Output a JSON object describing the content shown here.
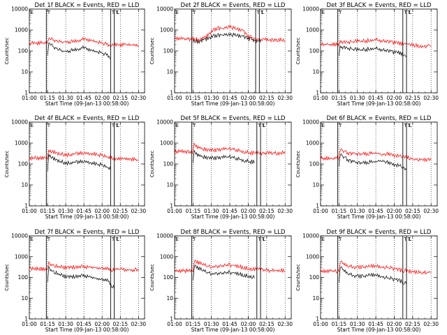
{
  "figure": {
    "background": "#ffffff",
    "series_colors": {
      "events": "#000000",
      "lld": "#ff0000"
    }
  },
  "chart_data": [
    {
      "type": "line",
      "title": "Det 1f BLACK = Events, RED = LLD",
      "xlabel": "Start Time (09-Jan-13 00:58:00)",
      "ylabel": "Counts/sec",
      "yscale": "log",
      "ylim": [
        1,
        10000
      ],
      "xlim": [
        "01:00",
        "02:35"
      ],
      "x_ticks": [
        "01:00",
        "01:15",
        "01:30",
        "01:45",
        "02:00",
        "02:15",
        "02:30"
      ],
      "y_ticks": [
        "1",
        "10",
        "100",
        "1000",
        "10000"
      ],
      "x": [
        "01:00",
        "01:15",
        "01:16",
        "01:20",
        "01:25",
        "01:30",
        "01:35",
        "01:40",
        "01:45",
        "01:50",
        "01:55",
        "02:00",
        "02:05",
        "02:07",
        "02:10",
        "02:15",
        "02:20",
        "02:25",
        "02:30"
      ],
      "series": [
        {
          "color": "#ff0000",
          "values": [
            210,
            210,
            380,
            300,
            250,
            230,
            250,
            280,
            330,
            310,
            250,
            210,
            180,
            170,
            190,
            180,
            180,
            175,
            180
          ]
        },
        {
          "color": "#000000",
          "values": [
            null,
            45,
            230,
            140,
            100,
            80,
            95,
            110,
            130,
            105,
            85,
            70,
            55,
            40,
            null,
            null,
            null,
            null,
            null
          ]
        }
      ],
      "markers": [
        {
          "label": "T",
          "x": "01:14"
        },
        {
          "label": "T",
          "x": "02:07"
        },
        {
          "label": "T",
          "x": "02:10"
        },
        {
          "label": "E",
          "x": "01:00"
        },
        {
          "label": "L",
          "x": "02:11"
        }
      ]
    },
    {
      "type": "line",
      "title": "Det 2f BLACK = Events, RED = LLD",
      "xlabel": "Start Time (09-Jan-13 00:58:00)",
      "ylabel": "Counts/sec",
      "yscale": "log",
      "ylim": [
        1,
        10000
      ],
      "xlim": [
        "01:00",
        "02:35"
      ],
      "x_ticks": [
        "01:00",
        "01:15",
        "01:30",
        "01:45",
        "02:00",
        "02:15",
        "02:30"
      ],
      "y_ticks": [
        "1",
        "10",
        "100",
        "1000",
        "10000"
      ],
      "x": [
        "01:00",
        "01:15",
        "01:20",
        "01:25",
        "01:30",
        "01:35",
        "01:40",
        "01:45",
        "01:50",
        "01:55",
        "02:00",
        "02:05",
        "02:10",
        "02:15",
        "02:20",
        "02:25",
        "02:30"
      ],
      "series": [
        {
          "color": "#ff0000",
          "values": [
            350,
            330,
            320,
            400,
            750,
            1100,
            1050,
            1300,
            1000,
            950,
            450,
            330,
            310,
            300,
            300,
            300,
            300
          ]
        },
        {
          "color": "#000000",
          "values": [
            null,
            260,
            260,
            320,
            420,
            500,
            520,
            540,
            500,
            480,
            360,
            270,
            260,
            null,
            null,
            null,
            null
          ]
        }
      ],
      "markers": [
        {
          "label": "T",
          "x": "01:14"
        },
        {
          "label": "T",
          "x": "02:06"
        },
        {
          "label": "T",
          "x": "02:09"
        },
        {
          "label": "E",
          "x": "01:00"
        },
        {
          "label": "L",
          "x": "02:10"
        }
      ]
    },
    {
      "type": "line",
      "title": "Det 3f BLACK = Events, RED = LLD",
      "xlabel": "Start Time (09-Jan-13 00:58:00)",
      "ylabel": "Counts/sec",
      "yscale": "log",
      "ylim": [
        1,
        10000
      ],
      "xlim": [
        "01:00",
        "02:35"
      ],
      "x_ticks": [
        "01:00",
        "01:15",
        "01:30",
        "01:45",
        "02:00",
        "02:15",
        "02:30"
      ],
      "y_ticks": [
        "1",
        "10",
        "100",
        "1000",
        "10000"
      ],
      "x": [
        "01:00",
        "01:15",
        "01:16",
        "01:20",
        "01:25",
        "01:30",
        "01:35",
        "01:40",
        "01:45",
        "01:50",
        "01:55",
        "02:00",
        "02:05",
        "02:07",
        "02:10",
        "02:15",
        "02:20",
        "02:25",
        "02:30"
      ],
      "series": [
        {
          "color": "#ff0000",
          "values": [
            180,
            180,
            250,
            220,
            240,
            260,
            270,
            280,
            300,
            270,
            250,
            230,
            200,
            180,
            200,
            170,
            160,
            155,
            160
          ]
        },
        {
          "color": "#000000",
          "values": [
            null,
            60,
            140,
            120,
            110,
            100,
            105,
            110,
            115,
            100,
            90,
            80,
            70,
            55,
            50,
            null,
            null,
            null,
            null
          ]
        }
      ],
      "markers": [
        {
          "label": "T",
          "x": "01:14"
        },
        {
          "label": "T",
          "x": "02:07"
        },
        {
          "label": "T",
          "x": "02:10"
        },
        {
          "label": "E",
          "x": "01:00"
        },
        {
          "label": "L",
          "x": "02:11"
        }
      ]
    },
    {
      "type": "line",
      "title": "Det 4f BLACK = Events, RED = LLD",
      "xlabel": "Start Time (09-Jan-13 00:58:00)",
      "ylabel": "Counts/sec",
      "yscale": "log",
      "ylim": [
        1,
        10000
      ],
      "xlim": [
        "01:00",
        "02:35"
      ],
      "x_ticks": [
        "01:00",
        "01:15",
        "01:30",
        "01:45",
        "02:00",
        "02:15",
        "02:30"
      ],
      "y_ticks": [
        "1",
        "10",
        "100",
        "1000",
        "10000"
      ],
      "x": [
        "01:00",
        "01:15",
        "01:16",
        "01:20",
        "01:25",
        "01:30",
        "01:35",
        "01:40",
        "01:45",
        "01:50",
        "01:55",
        "02:00",
        "02:05",
        "02:07",
        "02:10",
        "02:15",
        "02:20",
        "02:25",
        "02:30"
      ],
      "series": [
        {
          "color": "#ff0000",
          "values": [
            170,
            170,
            420,
            330,
            270,
            250,
            260,
            280,
            300,
            270,
            260,
            230,
            190,
            170,
            160,
            160,
            155,
            150,
            155
          ]
        },
        {
          "color": "#000000",
          "values": [
            null,
            45,
            260,
            160,
            120,
            100,
            105,
            110,
            120,
            100,
            90,
            80,
            60,
            50,
            null,
            null,
            null,
            null,
            null
          ]
        }
      ],
      "markers": [
        {
          "label": "T",
          "x": "01:14"
        },
        {
          "label": "T",
          "x": "02:07"
        },
        {
          "label": "T",
          "x": "02:10"
        },
        {
          "label": "E",
          "x": "01:00"
        },
        {
          "label": "L",
          "x": "02:11"
        }
      ]
    },
    {
      "type": "line",
      "title": "Det 5f BLACK = Events, RED = LLD",
      "xlabel": "Start Time (09-Jan-13 00:58:00)",
      "ylabel": "Counts/sec",
      "yscale": "log",
      "ylim": [
        1,
        10000
      ],
      "xlim": [
        "01:00",
        "02:35"
      ],
      "x_ticks": [
        "01:00",
        "01:15",
        "01:30",
        "01:45",
        "02:00",
        "02:15",
        "02:30"
      ],
      "y_ticks": [
        "1",
        "10",
        "100",
        "1000",
        "10000"
      ],
      "x": [
        "01:00",
        "01:15",
        "01:16",
        "01:20",
        "01:25",
        "01:30",
        "01:35",
        "01:40",
        "01:45",
        "01:50",
        "01:55",
        "02:00",
        "02:05",
        "02:10",
        "02:15",
        "02:20",
        "02:25",
        "02:30"
      ],
      "series": [
        {
          "color": "#ff0000",
          "values": [
            350,
            350,
            700,
            550,
            450,
            400,
            420,
            450,
            480,
            430,
            360,
            320,
            290,
            300,
            300,
            300,
            300,
            300
          ]
        },
        {
          "color": "#000000",
          "values": [
            null,
            90,
            320,
            230,
            190,
            170,
            175,
            185,
            195,
            170,
            140,
            120,
            110,
            null,
            null,
            null,
            null,
            null
          ]
        }
      ],
      "markers": [
        {
          "label": "T",
          "x": "01:14"
        },
        {
          "label": "T",
          "x": "02:07"
        },
        {
          "label": "T",
          "x": "02:10"
        },
        {
          "label": "E",
          "x": "01:00"
        },
        {
          "label": "L",
          "x": "02:11"
        }
      ]
    },
    {
      "type": "line",
      "title": "Det 6f BLACK = Events, RED = LLD",
      "xlabel": "Start Time (09-Jan-13 00:58:00)",
      "ylabel": "Counts/sec",
      "yscale": "log",
      "ylim": [
        1,
        10000
      ],
      "xlim": [
        "01:00",
        "02:35"
      ],
      "x_ticks": [
        "01:00",
        "01:15",
        "01:30",
        "01:45",
        "02:00",
        "02:15",
        "02:30"
      ],
      "y_ticks": [
        "1",
        "10",
        "100",
        "1000",
        "10000"
      ],
      "x": [
        "01:00",
        "01:15",
        "01:16",
        "01:20",
        "01:25",
        "01:30",
        "01:35",
        "01:40",
        "01:45",
        "01:50",
        "01:55",
        "02:00",
        "02:05",
        "02:07",
        "02:10",
        "02:15",
        "02:20",
        "02:25",
        "02:30"
      ],
      "series": [
        {
          "color": "#ff0000",
          "values": [
            170,
            170,
            450,
            330,
            280,
            260,
            270,
            280,
            300,
            270,
            260,
            240,
            200,
            180,
            200,
            160,
            150,
            150,
            150
          ]
        },
        {
          "color": "#000000",
          "values": [
            null,
            60,
            260,
            170,
            120,
            100,
            100,
            110,
            115,
            140,
            100,
            85,
            70,
            55,
            50,
            null,
            null,
            null,
            null
          ]
        }
      ],
      "markers": [
        {
          "label": "T",
          "x": "01:14"
        },
        {
          "label": "T",
          "x": "02:07"
        },
        {
          "label": "T",
          "x": "02:10"
        },
        {
          "label": "E",
          "x": "01:00"
        },
        {
          "label": "L",
          "x": "02:11"
        }
      ]
    },
    {
      "type": "line",
      "title": "Det 7f BLACK = Events, RED = LLD",
      "xlabel": "Start Time (09-Jan-13 00:58:00)",
      "ylabel": "Counts/sec",
      "yscale": "log",
      "ylim": [
        1,
        10000
      ],
      "xlim": [
        "01:00",
        "02:35"
      ],
      "x_ticks": [
        "01:00",
        "01:15",
        "01:30",
        "01:45",
        "02:00",
        "02:15",
        "02:30"
      ],
      "y_ticks": [
        "1",
        "10",
        "100",
        "1000",
        "10000"
      ],
      "x": [
        "01:00",
        "01:15",
        "01:16",
        "01:20",
        "01:25",
        "01:30",
        "01:35",
        "01:40",
        "01:45",
        "01:50",
        "01:55",
        "02:00",
        "02:05",
        "02:07",
        "02:10",
        "02:15",
        "02:20",
        "02:25",
        "02:30"
      ],
      "series": [
        {
          "color": "#ff0000",
          "values": [
            230,
            230,
            420,
            320,
            280,
            260,
            270,
            280,
            300,
            280,
            260,
            240,
            220,
            210,
            220,
            210,
            210,
            205,
            210
          ]
        },
        {
          "color": "#000000",
          "values": [
            null,
            45,
            250,
            160,
            120,
            95,
            95,
            100,
            110,
            95,
            80,
            70,
            60,
            40,
            30,
            null,
            null,
            null,
            null
          ]
        }
      ],
      "markers": [
        {
          "label": "T",
          "x": "01:14"
        },
        {
          "label": "T",
          "x": "02:07"
        },
        {
          "label": "T",
          "x": "02:10"
        },
        {
          "label": "E",
          "x": "01:00"
        },
        {
          "label": "L",
          "x": "02:11"
        }
      ]
    },
    {
      "type": "line",
      "title": "Det 8f BLACK = Events, RED = LLD",
      "xlabel": "Start Time (09-Jan-13 00:58:00)",
      "ylabel": "Counts/sec",
      "yscale": "log",
      "ylim": [
        1,
        10000
      ],
      "xlim": [
        "01:00",
        "02:35"
      ],
      "x_ticks": [
        "01:00",
        "01:15",
        "01:30",
        "01:45",
        "02:00",
        "02:15",
        "02:30"
      ],
      "y_ticks": [
        "1",
        "10",
        "100",
        "1000",
        "10000"
      ],
      "x": [
        "01:00",
        "01:15",
        "01:16",
        "01:20",
        "01:25",
        "01:30",
        "01:35",
        "01:40",
        "01:45",
        "01:50",
        "01:55",
        "02:00",
        "02:05",
        "02:10",
        "02:15",
        "02:20",
        "02:25",
        "02:30"
      ],
      "series": [
        {
          "color": "#ff0000",
          "values": [
            190,
            190,
            550,
            430,
            340,
            300,
            310,
            330,
            360,
            320,
            280,
            240,
            220,
            230,
            200,
            190,
            190,
            190
          ]
        },
        {
          "color": "#000000",
          "values": [
            null,
            70,
            320,
            230,
            170,
            140,
            140,
            145,
            155,
            140,
            120,
            105,
            90,
            null,
            null,
            null,
            null,
            null
          ]
        }
      ],
      "markers": [
        {
          "label": "T",
          "x": "01:14"
        },
        {
          "label": "T",
          "x": "02:07"
        },
        {
          "label": "T",
          "x": "02:10"
        },
        {
          "label": "E",
          "x": "01:00"
        },
        {
          "label": "L",
          "x": "02:11"
        }
      ]
    },
    {
      "type": "line",
      "title": "Det 9f BLACK = Events, RED = LLD",
      "xlabel": "Start Time (09-Jan-13 00:58:00)",
      "ylabel": "Counts/sec",
      "yscale": "log",
      "ylim": [
        1,
        10000
      ],
      "xlim": [
        "01:00",
        "02:35"
      ],
      "x_ticks": [
        "01:00",
        "01:15",
        "01:30",
        "01:45",
        "02:00",
        "02:15",
        "02:30"
      ],
      "y_ticks": [
        "1",
        "10",
        "100",
        "1000",
        "10000"
      ],
      "x": [
        "01:00",
        "01:15",
        "01:16",
        "01:20",
        "01:25",
        "01:30",
        "01:35",
        "01:40",
        "01:45",
        "01:50",
        "01:55",
        "02:00",
        "02:05",
        "02:07",
        "02:10",
        "02:15",
        "02:20",
        "02:25",
        "02:30"
      ],
      "series": [
        {
          "color": "#ff0000",
          "values": [
            180,
            180,
            480,
            360,
            300,
            270,
            280,
            290,
            310,
            290,
            270,
            240,
            200,
            180,
            190,
            170,
            160,
            160,
            165
          ]
        },
        {
          "color": "#000000",
          "values": [
            null,
            50,
            260,
            170,
            120,
            100,
            100,
            110,
            115,
            100,
            85,
            75,
            60,
            50,
            45,
            null,
            null,
            null,
            null
          ]
        }
      ],
      "markers": [
        {
          "label": "T",
          "x": "01:14"
        },
        {
          "label": "T",
          "x": "02:07"
        },
        {
          "label": "T",
          "x": "02:10"
        },
        {
          "label": "E",
          "x": "01:00"
        },
        {
          "label": "L",
          "x": "02:11"
        }
      ]
    }
  ]
}
